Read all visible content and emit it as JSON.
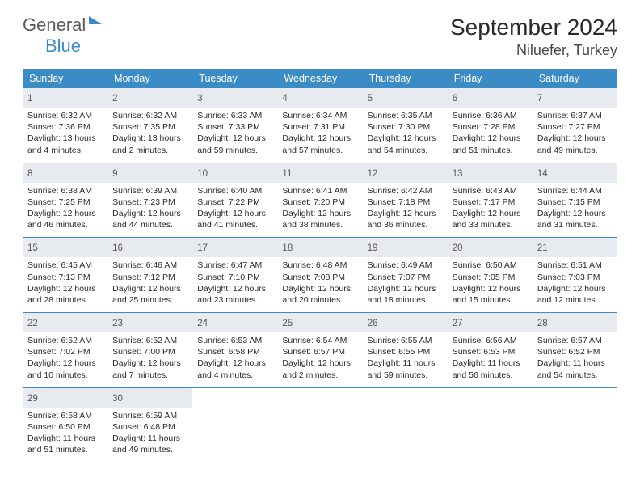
{
  "brand": {
    "part1": "General",
    "part2": "Blue"
  },
  "title": "September 2024",
  "location": "Niluefer, Turkey",
  "colors": {
    "header_bg": "#3b8bc5",
    "daynum_bg": "#e7ebef",
    "week_border": "#3b8bc5",
    "text": "#2a2a2a"
  },
  "daysOfWeek": [
    "Sunday",
    "Monday",
    "Tuesday",
    "Wednesday",
    "Thursday",
    "Friday",
    "Saturday"
  ],
  "weeks": [
    [
      {
        "n": "1",
        "sr": "6:32 AM",
        "ss": "7:36 PM",
        "dl": "13 hours and 4 minutes."
      },
      {
        "n": "2",
        "sr": "6:32 AM",
        "ss": "7:35 PM",
        "dl": "13 hours and 2 minutes."
      },
      {
        "n": "3",
        "sr": "6:33 AM",
        "ss": "7:33 PM",
        "dl": "12 hours and 59 minutes."
      },
      {
        "n": "4",
        "sr": "6:34 AM",
        "ss": "7:31 PM",
        "dl": "12 hours and 57 minutes."
      },
      {
        "n": "5",
        "sr": "6:35 AM",
        "ss": "7:30 PM",
        "dl": "12 hours and 54 minutes."
      },
      {
        "n": "6",
        "sr": "6:36 AM",
        "ss": "7:28 PM",
        "dl": "12 hours and 51 minutes."
      },
      {
        "n": "7",
        "sr": "6:37 AM",
        "ss": "7:27 PM",
        "dl": "12 hours and 49 minutes."
      }
    ],
    [
      {
        "n": "8",
        "sr": "6:38 AM",
        "ss": "7:25 PM",
        "dl": "12 hours and 46 minutes."
      },
      {
        "n": "9",
        "sr": "6:39 AM",
        "ss": "7:23 PM",
        "dl": "12 hours and 44 minutes."
      },
      {
        "n": "10",
        "sr": "6:40 AM",
        "ss": "7:22 PM",
        "dl": "12 hours and 41 minutes."
      },
      {
        "n": "11",
        "sr": "6:41 AM",
        "ss": "7:20 PM",
        "dl": "12 hours and 38 minutes."
      },
      {
        "n": "12",
        "sr": "6:42 AM",
        "ss": "7:18 PM",
        "dl": "12 hours and 36 minutes."
      },
      {
        "n": "13",
        "sr": "6:43 AM",
        "ss": "7:17 PM",
        "dl": "12 hours and 33 minutes."
      },
      {
        "n": "14",
        "sr": "6:44 AM",
        "ss": "7:15 PM",
        "dl": "12 hours and 31 minutes."
      }
    ],
    [
      {
        "n": "15",
        "sr": "6:45 AM",
        "ss": "7:13 PM",
        "dl": "12 hours and 28 minutes."
      },
      {
        "n": "16",
        "sr": "6:46 AM",
        "ss": "7:12 PM",
        "dl": "12 hours and 25 minutes."
      },
      {
        "n": "17",
        "sr": "6:47 AM",
        "ss": "7:10 PM",
        "dl": "12 hours and 23 minutes."
      },
      {
        "n": "18",
        "sr": "6:48 AM",
        "ss": "7:08 PM",
        "dl": "12 hours and 20 minutes."
      },
      {
        "n": "19",
        "sr": "6:49 AM",
        "ss": "7:07 PM",
        "dl": "12 hours and 18 minutes."
      },
      {
        "n": "20",
        "sr": "6:50 AM",
        "ss": "7:05 PM",
        "dl": "12 hours and 15 minutes."
      },
      {
        "n": "21",
        "sr": "6:51 AM",
        "ss": "7:03 PM",
        "dl": "12 hours and 12 minutes."
      }
    ],
    [
      {
        "n": "22",
        "sr": "6:52 AM",
        "ss": "7:02 PM",
        "dl": "12 hours and 10 minutes."
      },
      {
        "n": "23",
        "sr": "6:52 AM",
        "ss": "7:00 PM",
        "dl": "12 hours and 7 minutes."
      },
      {
        "n": "24",
        "sr": "6:53 AM",
        "ss": "6:58 PM",
        "dl": "12 hours and 4 minutes."
      },
      {
        "n": "25",
        "sr": "6:54 AM",
        "ss": "6:57 PM",
        "dl": "12 hours and 2 minutes."
      },
      {
        "n": "26",
        "sr": "6:55 AM",
        "ss": "6:55 PM",
        "dl": "11 hours and 59 minutes."
      },
      {
        "n": "27",
        "sr": "6:56 AM",
        "ss": "6:53 PM",
        "dl": "11 hours and 56 minutes."
      },
      {
        "n": "28",
        "sr": "6:57 AM",
        "ss": "6:52 PM",
        "dl": "11 hours and 54 minutes."
      }
    ],
    [
      {
        "n": "29",
        "sr": "6:58 AM",
        "ss": "6:50 PM",
        "dl": "11 hours and 51 minutes."
      },
      {
        "n": "30",
        "sr": "6:59 AM",
        "ss": "6:48 PM",
        "dl": "11 hours and 49 minutes."
      },
      null,
      null,
      null,
      null,
      null
    ]
  ],
  "labels": {
    "sunrise": "Sunrise:",
    "sunset": "Sunset:",
    "daylight": "Daylight:"
  }
}
